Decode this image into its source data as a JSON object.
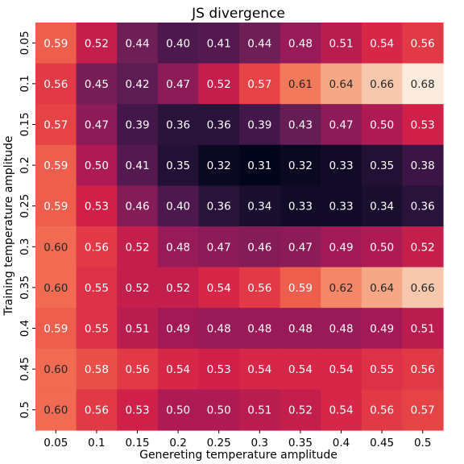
{
  "chart_data": {
    "type": "heatmap",
    "title": "JS divergence",
    "xlabel": "Genereting temperature amplitude",
    "ylabel": "Training temperature amplitude",
    "x_categories": [
      "0.05",
      "0.1",
      "0.15",
      "0.2",
      "0.25",
      "0.3",
      "0.35",
      "0.4",
      "0.45",
      "0.5"
    ],
    "y_categories": [
      "0.05",
      "0.1",
      "0.15",
      "0.2",
      "0.25",
      "0.3",
      "0.35",
      "0.4",
      "0.45",
      "0.5"
    ],
    "values": [
      [
        0.59,
        0.52,
        0.44,
        0.4,
        0.41,
        0.44,
        0.48,
        0.51,
        0.54,
        0.56
      ],
      [
        0.56,
        0.45,
        0.42,
        0.47,
        0.52,
        0.57,
        0.61,
        0.64,
        0.66,
        0.68
      ],
      [
        0.57,
        0.47,
        0.39,
        0.36,
        0.36,
        0.39,
        0.43,
        0.47,
        0.5,
        0.53
      ],
      [
        0.59,
        0.5,
        0.41,
        0.35,
        0.32,
        0.31,
        0.32,
        0.33,
        0.35,
        0.38
      ],
      [
        0.59,
        0.53,
        0.46,
        0.4,
        0.36,
        0.34,
        0.33,
        0.33,
        0.34,
        0.36
      ],
      [
        0.6,
        0.56,
        0.52,
        0.48,
        0.47,
        0.46,
        0.47,
        0.49,
        0.5,
        0.52
      ],
      [
        0.6,
        0.55,
        0.52,
        0.52,
        0.54,
        0.56,
        0.59,
        0.62,
        0.64,
        0.66
      ],
      [
        0.59,
        0.55,
        0.51,
        0.49,
        0.48,
        0.48,
        0.48,
        0.48,
        0.49,
        0.51
      ],
      [
        0.6,
        0.58,
        0.56,
        0.54,
        0.53,
        0.54,
        0.54,
        0.54,
        0.55,
        0.56
      ],
      [
        0.6,
        0.56,
        0.53,
        0.5,
        0.5,
        0.51,
        0.52,
        0.54,
        0.56,
        0.57
      ]
    ],
    "colormap": "rocket",
    "vrange": [
      0.31,
      0.68
    ],
    "annotations": true,
    "grid": false,
    "legend": "none"
  }
}
